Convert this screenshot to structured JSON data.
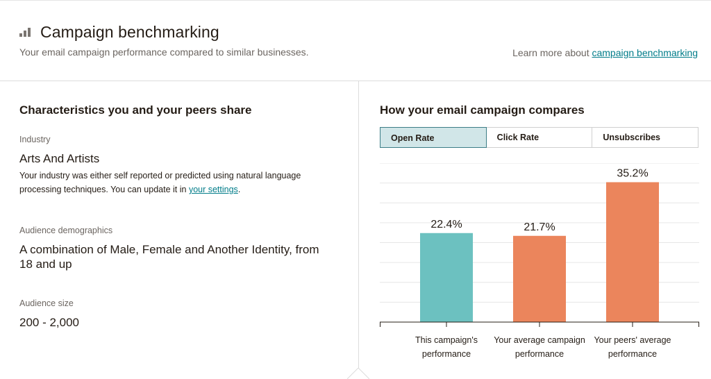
{
  "header": {
    "title": "Campaign benchmarking",
    "subtitle": "Your email campaign performance compared to similar businesses.",
    "learn_more_prefix": "Learn more about ",
    "learn_more_link": "campaign benchmarking",
    "icon": "bar-chart-icon"
  },
  "characteristics": {
    "title": "Characteristics you and your peers share",
    "industry_label": "Industry",
    "industry_value": "Arts And Artists",
    "industry_help_line1": "Your industry was either self reported or predicted using natural language",
    "industry_help_line2_prefix": "processing techniques. You can update it in ",
    "industry_help_link": "your settings",
    "industry_help_suffix": ".",
    "demographics_label": "Audience demographics",
    "demographics_line1": "A combination of Male, Female and Another Identity, from",
    "demographics_line2": "18 and up",
    "size_label": "Audience size",
    "size_value": "200 - 2,000"
  },
  "comparison": {
    "title": "How your email campaign compares",
    "tabs": [
      "Open Rate",
      "Click Rate",
      "Unsubscribes"
    ],
    "active_tab": "Open Rate"
  },
  "chart_data": {
    "type": "bar",
    "categories": [
      [
        "This campaign's",
        "performance"
      ],
      [
        "Your average campaign",
        "performance"
      ],
      [
        "Your peers' average",
        "performance"
      ]
    ],
    "values": [
      22.4,
      21.7,
      35.2
    ],
    "value_labels": [
      "22.4%",
      "21.7%",
      "35.2%"
    ],
    "colors": [
      "#6cc1c0",
      "#eb855c",
      "#eb855c"
    ],
    "ylim": [
      0,
      40
    ],
    "grid": true,
    "title": "",
    "xlabel": "",
    "ylabel": ""
  }
}
